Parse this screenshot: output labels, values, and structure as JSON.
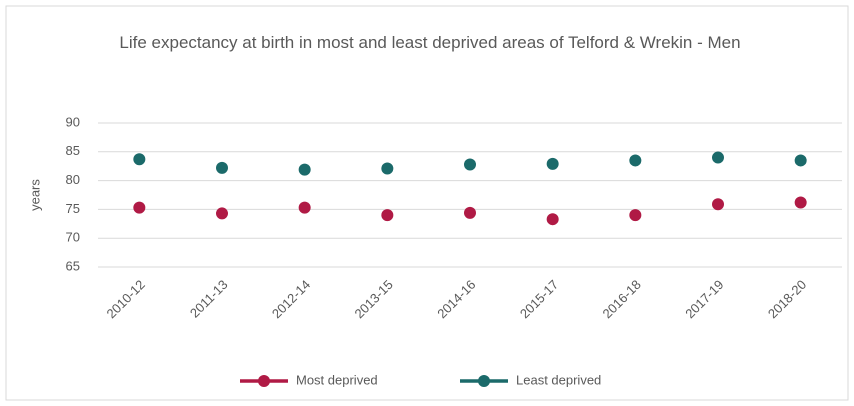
{
  "chart_data": {
    "type": "line",
    "title": "Life expectancy at birth in most and least deprived areas of Telford & Wrekin - Men",
    "y_label": "years",
    "categories": [
      "2010-12",
      "2011-13",
      "2012-14",
      "2013-15",
      "2014-16",
      "2015-17",
      "2016-18",
      "2017-19",
      "2018-20"
    ],
    "series": [
      {
        "name": "Most deprived",
        "color": "#b01a45",
        "values": [
          75.3,
          74.3,
          75.3,
          74.0,
          74.4,
          73.3,
          74.0,
          75.9,
          76.2
        ]
      },
      {
        "name": "Least deprived",
        "color": "#1b6a6a",
        "values": [
          83.7,
          82.2,
          81.9,
          82.1,
          82.8,
          82.9,
          83.5,
          84.0,
          83.5
        ]
      }
    ],
    "ylim": [
      65,
      90
    ],
    "yticks": [
      65,
      70,
      75,
      80,
      85,
      90
    ],
    "grid": true,
    "legend": "bottom"
  }
}
